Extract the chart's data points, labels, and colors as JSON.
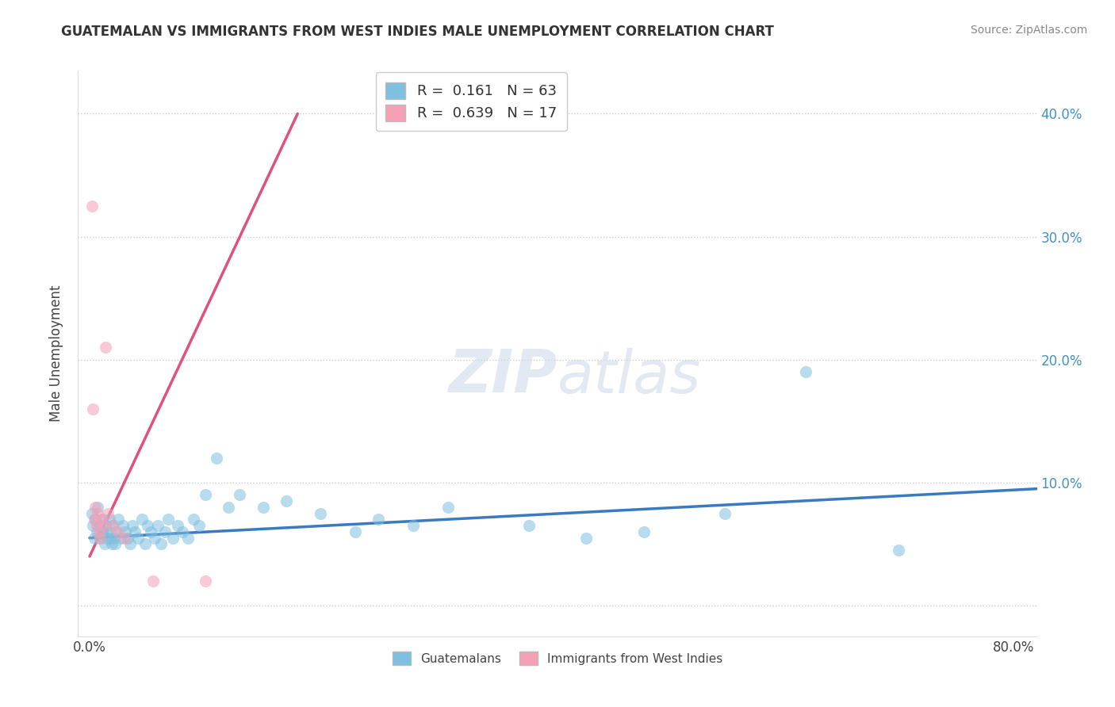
{
  "title": "GUATEMALAN VS IMMIGRANTS FROM WEST INDIES MALE UNEMPLOYMENT CORRELATION CHART",
  "source": "Source: ZipAtlas.com",
  "ylabel": "Male Unemployment",
  "watermark": "ZIPatlas",
  "blue_color": "#7fbfdf",
  "pink_color": "#f4a0b5",
  "blue_line_color": "#3a7abf",
  "pink_line_color": "#e05080",
  "blue_scatter": [
    [
      0.002,
      0.075
    ],
    [
      0.003,
      0.065
    ],
    [
      0.004,
      0.055
    ],
    [
      0.005,
      0.07
    ],
    [
      0.006,
      0.06
    ],
    [
      0.007,
      0.08
    ],
    [
      0.008,
      0.065
    ],
    [
      0.009,
      0.055
    ],
    [
      0.01,
      0.06
    ],
    [
      0.011,
      0.07
    ],
    [
      0.012,
      0.06
    ],
    [
      0.013,
      0.05
    ],
    [
      0.014,
      0.065
    ],
    [
      0.015,
      0.055
    ],
    [
      0.016,
      0.06
    ],
    [
      0.017,
      0.07
    ],
    [
      0.018,
      0.055
    ],
    [
      0.019,
      0.05
    ],
    [
      0.02,
      0.065
    ],
    [
      0.021,
      0.055
    ],
    [
      0.022,
      0.05
    ],
    [
      0.023,
      0.06
    ],
    [
      0.025,
      0.07
    ],
    [
      0.027,
      0.055
    ],
    [
      0.029,
      0.065
    ],
    [
      0.031,
      0.06
    ],
    [
      0.033,
      0.055
    ],
    [
      0.035,
      0.05
    ],
    [
      0.037,
      0.065
    ],
    [
      0.039,
      0.06
    ],
    [
      0.042,
      0.055
    ],
    [
      0.045,
      0.07
    ],
    [
      0.048,
      0.05
    ],
    [
      0.05,
      0.065
    ],
    [
      0.053,
      0.06
    ],
    [
      0.056,
      0.055
    ],
    [
      0.059,
      0.065
    ],
    [
      0.062,
      0.05
    ],
    [
      0.065,
      0.06
    ],
    [
      0.068,
      0.07
    ],
    [
      0.072,
      0.055
    ],
    [
      0.076,
      0.065
    ],
    [
      0.08,
      0.06
    ],
    [
      0.085,
      0.055
    ],
    [
      0.09,
      0.07
    ],
    [
      0.095,
      0.065
    ],
    [
      0.1,
      0.09
    ],
    [
      0.11,
      0.12
    ],
    [
      0.12,
      0.08
    ],
    [
      0.13,
      0.09
    ],
    [
      0.15,
      0.08
    ],
    [
      0.17,
      0.085
    ],
    [
      0.2,
      0.075
    ],
    [
      0.23,
      0.06
    ],
    [
      0.25,
      0.07
    ],
    [
      0.28,
      0.065
    ],
    [
      0.31,
      0.08
    ],
    [
      0.38,
      0.065
    ],
    [
      0.43,
      0.055
    ],
    [
      0.48,
      0.06
    ],
    [
      0.55,
      0.075
    ],
    [
      0.62,
      0.19
    ],
    [
      0.7,
      0.045
    ]
  ],
  "pink_scatter": [
    [
      0.002,
      0.325
    ],
    [
      0.003,
      0.16
    ],
    [
      0.004,
      0.07
    ],
    [
      0.005,
      0.08
    ],
    [
      0.006,
      0.065
    ],
    [
      0.007,
      0.075
    ],
    [
      0.008,
      0.06
    ],
    [
      0.009,
      0.055
    ],
    [
      0.01,
      0.07
    ],
    [
      0.012,
      0.065
    ],
    [
      0.014,
      0.21
    ],
    [
      0.016,
      0.075
    ],
    [
      0.02,
      0.065
    ],
    [
      0.025,
      0.06
    ],
    [
      0.03,
      0.055
    ],
    [
      0.055,
      0.02
    ],
    [
      0.1,
      0.02
    ]
  ],
  "xlim": [
    -0.01,
    0.82
  ],
  "ylim": [
    -0.025,
    0.435
  ],
  "yticks": [
    0.0,
    0.1,
    0.2,
    0.3,
    0.4
  ],
  "right_ytick_labels": [
    "",
    "10.0%",
    "20.0%",
    "30.0%",
    "40.0%"
  ],
  "xtick_positions": [
    0.0,
    0.1,
    0.2,
    0.3,
    0.4,
    0.5,
    0.6,
    0.7,
    0.8
  ],
  "blue_trend_x": [
    0.0,
    0.82
  ],
  "blue_trend_y": [
    0.055,
    0.095
  ],
  "pink_trend_x": [
    0.0,
    0.18
  ],
  "pink_trend_y": [
    0.04,
    0.4
  ]
}
